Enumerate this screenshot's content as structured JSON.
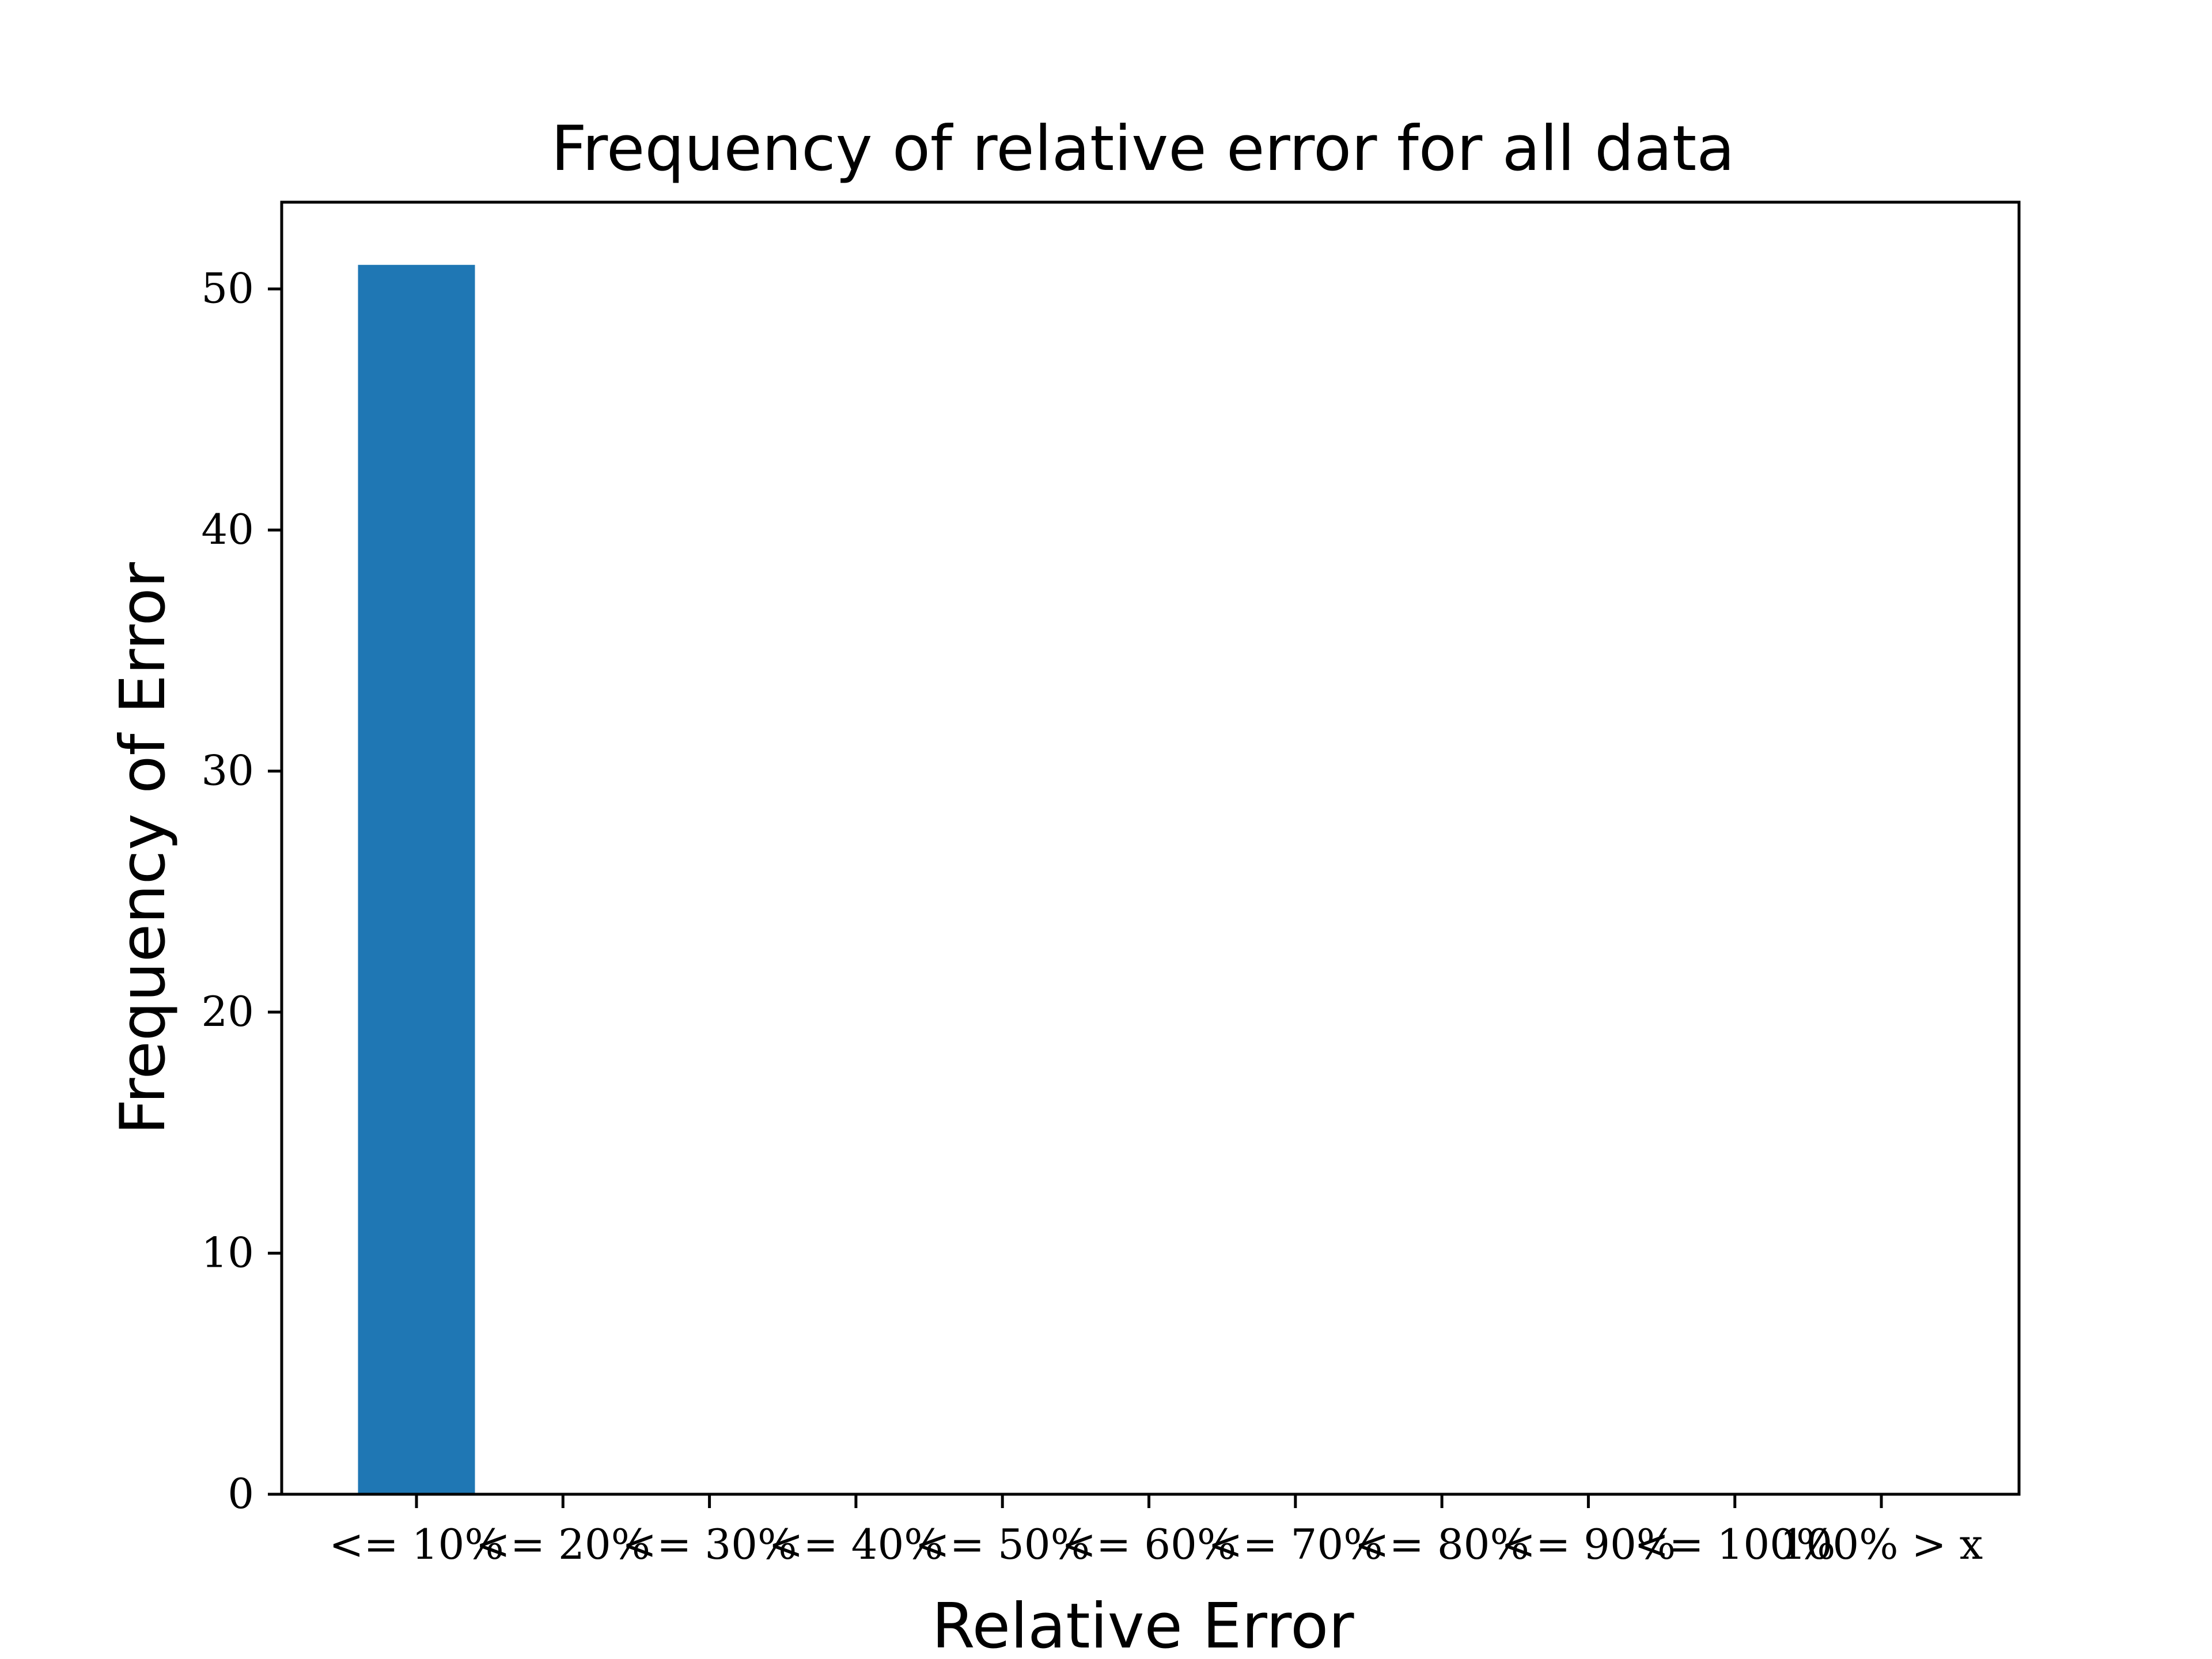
{
  "chart_data": {
    "type": "bar",
    "title": "Frequency of relative error for all data",
    "xlabel": "Relative Error",
    "ylabel": "Frequency of Error",
    "categories": [
      "<= 10%",
      "<= 20%",
      "<= 30%",
      "<= 40%",
      "<= 50%",
      "<= 60%",
      "<= 70%",
      "<= 80%",
      "<= 90%",
      "<= 100%",
      "100% > x"
    ],
    "values": [
      51,
      0,
      0,
      0,
      0,
      0,
      0,
      0,
      0,
      0,
      0
    ],
    "ylim": [
      0,
      53.6
    ],
    "yticks": [
      "0",
      "10",
      "20",
      "30",
      "40",
      "50"
    ],
    "grid": false,
    "bar_color": "#1f77b4"
  }
}
